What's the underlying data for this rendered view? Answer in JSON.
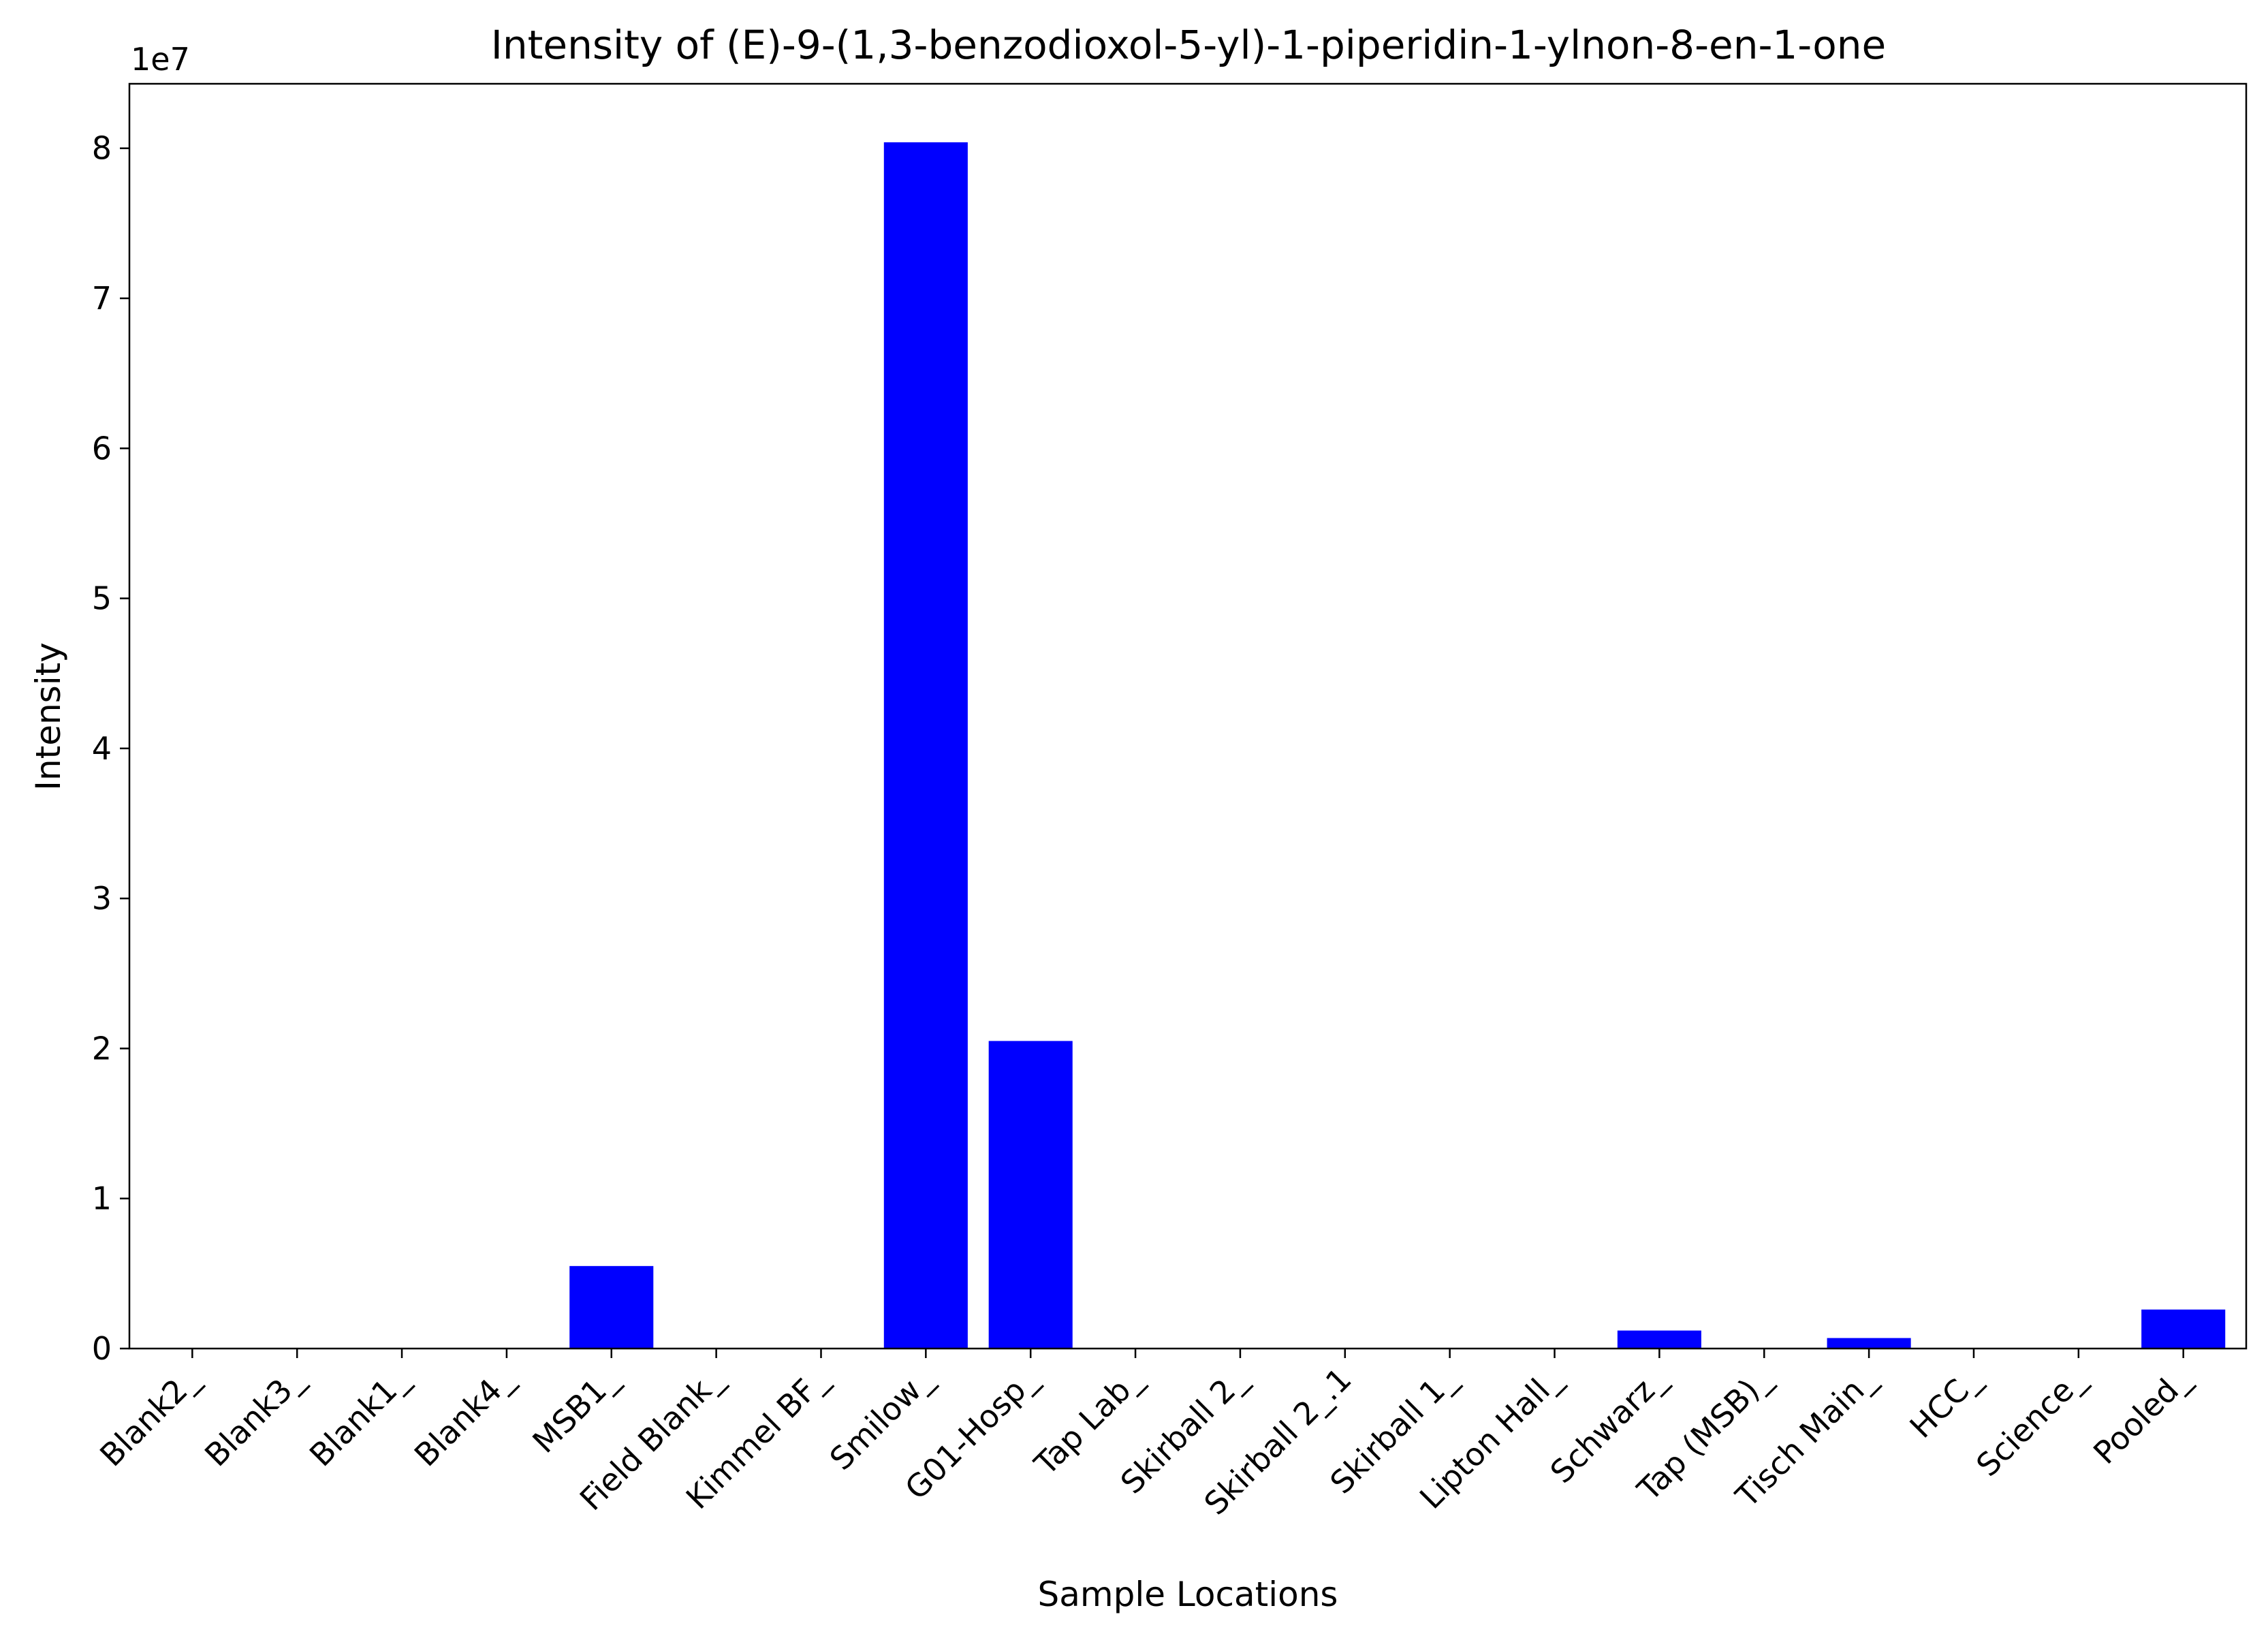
{
  "chart_data": {
    "type": "bar",
    "title": "Intensity of (E)-9-(1,3-benzodioxol-5-yl)-1-piperidin-1-ylnon-8-en-1-one",
    "xlabel": "Sample Locations",
    "ylabel": "Intensity",
    "y_offset_label": "1e7",
    "bar_color": "#0000ff",
    "ylim": [
      0,
      84300000
    ],
    "y_ticks": [
      0,
      10000000,
      20000000,
      30000000,
      40000000,
      50000000,
      60000000,
      70000000,
      80000000
    ],
    "y_tick_labels": [
      "0",
      "1",
      "2",
      "3",
      "4",
      "5",
      "6",
      "7",
      "8"
    ],
    "grid": false,
    "legend": "none",
    "categories": [
      "Blank2_",
      "Blank3_",
      "Blank1_",
      "Blank4_",
      "MSB1_",
      "Field Blank_",
      "Kimmel BF_",
      "Smilow_",
      "G01-Hosp_",
      "Tap Lab_",
      "Skirball 2_",
      "Skirball 2_.1",
      "Skirball 1_",
      "Lipton Hall_",
      "Schwarz_",
      "Tap (MSB)_",
      "Tisch Main_",
      "HCC_",
      "Science_",
      "Pooled_"
    ],
    "values": [
      0,
      0,
      0,
      0,
      5500000,
      0,
      0,
      80400000,
      20500000,
      0,
      0,
      0,
      0,
      0,
      1200000,
      0,
      700000,
      0,
      0,
      2600000
    ]
  }
}
